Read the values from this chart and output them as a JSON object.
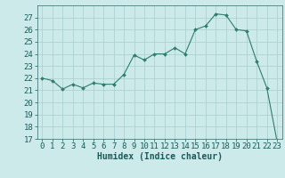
{
  "x": [
    0,
    1,
    2,
    3,
    4,
    5,
    6,
    7,
    8,
    9,
    10,
    11,
    12,
    13,
    14,
    15,
    16,
    17,
    18,
    19,
    20,
    21,
    22,
    23
  ],
  "y": [
    22.0,
    21.8,
    21.1,
    21.5,
    21.2,
    21.6,
    21.5,
    21.5,
    22.3,
    23.9,
    23.5,
    24.0,
    24.0,
    24.5,
    24.0,
    26.0,
    26.3,
    27.3,
    27.2,
    26.0,
    25.9,
    23.4,
    21.2,
    16.8
  ],
  "line_color": "#2e7d6e",
  "marker": "D",
  "marker_size": 2.0,
  "bg_color": "#cceaea",
  "grid_color": "#aacccc",
  "xlabel": "Humidex (Indice chaleur)",
  "ylim": [
    17,
    28
  ],
  "xlim": [
    -0.5,
    23.5
  ],
  "yticks": [
    17,
    18,
    19,
    20,
    21,
    22,
    23,
    24,
    25,
    26,
    27
  ],
  "xticks": [
    0,
    1,
    2,
    3,
    4,
    5,
    6,
    7,
    8,
    9,
    10,
    11,
    12,
    13,
    14,
    15,
    16,
    17,
    18,
    19,
    20,
    21,
    22,
    23
  ],
  "xlabel_fontsize": 7,
  "tick_fontsize": 6.5
}
